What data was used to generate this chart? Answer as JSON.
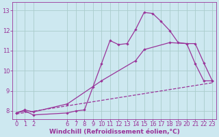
{
  "bg_color": "#cde8f0",
  "line_color": "#993399",
  "grid_color": "#aacccc",
  "xlabel": "Windchill (Refroidissement éolien,°C)",
  "ylim": [
    7.6,
    13.4
  ],
  "xlim": [
    -0.5,
    23.5
  ],
  "yticks": [
    8,
    9,
    10,
    11,
    12,
    13
  ],
  "xticks": [
    0,
    1,
    2,
    6,
    7,
    8,
    9,
    10,
    11,
    12,
    13,
    14,
    15,
    16,
    17,
    18,
    19,
    20,
    21,
    22,
    23
  ],
  "line1_x": [
    0,
    1,
    2,
    6,
    7,
    8,
    9,
    10,
    11,
    12,
    13,
    14,
    15,
    16,
    17,
    18,
    19,
    20,
    21,
    22,
    23
  ],
  "line1_y": [
    7.9,
    8.0,
    7.8,
    7.9,
    8.0,
    8.05,
    9.2,
    10.35,
    11.5,
    11.3,
    11.35,
    12.05,
    12.9,
    12.85,
    12.45,
    12.0,
    11.4,
    11.35,
    10.35,
    9.5,
    9.5
  ],
  "line2_x": [
    0,
    1,
    2,
    6,
    10,
    14,
    15,
    18,
    20,
    21,
    22,
    23
  ],
  "line2_y": [
    7.9,
    8.05,
    7.95,
    8.35,
    9.5,
    10.5,
    11.05,
    11.4,
    11.35,
    11.35,
    10.4,
    9.5
  ],
  "line3_x": [
    0,
    23
  ],
  "line3_y": [
    7.85,
    9.4
  ],
  "marker": "D",
  "markersize": 2.2,
  "linewidth": 0.9,
  "font_size": 6.5,
  "tick_font_size": 6.0,
  "xlabel_fontsize": 6.5
}
